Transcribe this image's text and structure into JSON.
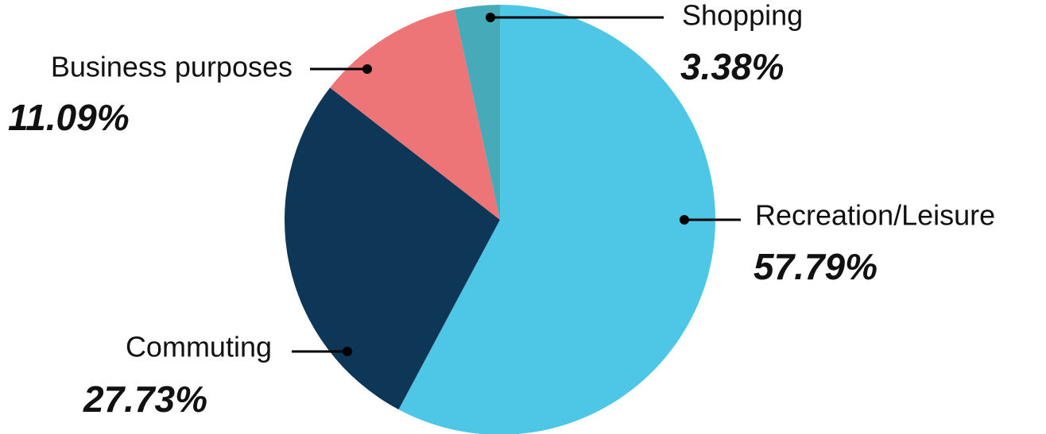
{
  "chart_data": {
    "type": "pie",
    "categories": [
      "Recreation/Leisure",
      "Commuting",
      "Business purposes",
      "Shopping"
    ],
    "values": [
      57.79,
      27.73,
      11.09,
      3.38
    ],
    "value_labels": [
      "57.79%",
      "27.73%",
      "11.09%",
      "3.38%"
    ],
    "colors": [
      "#4ec6e6",
      "#0d3657",
      "#ee7577",
      "#46aab8"
    ]
  }
}
